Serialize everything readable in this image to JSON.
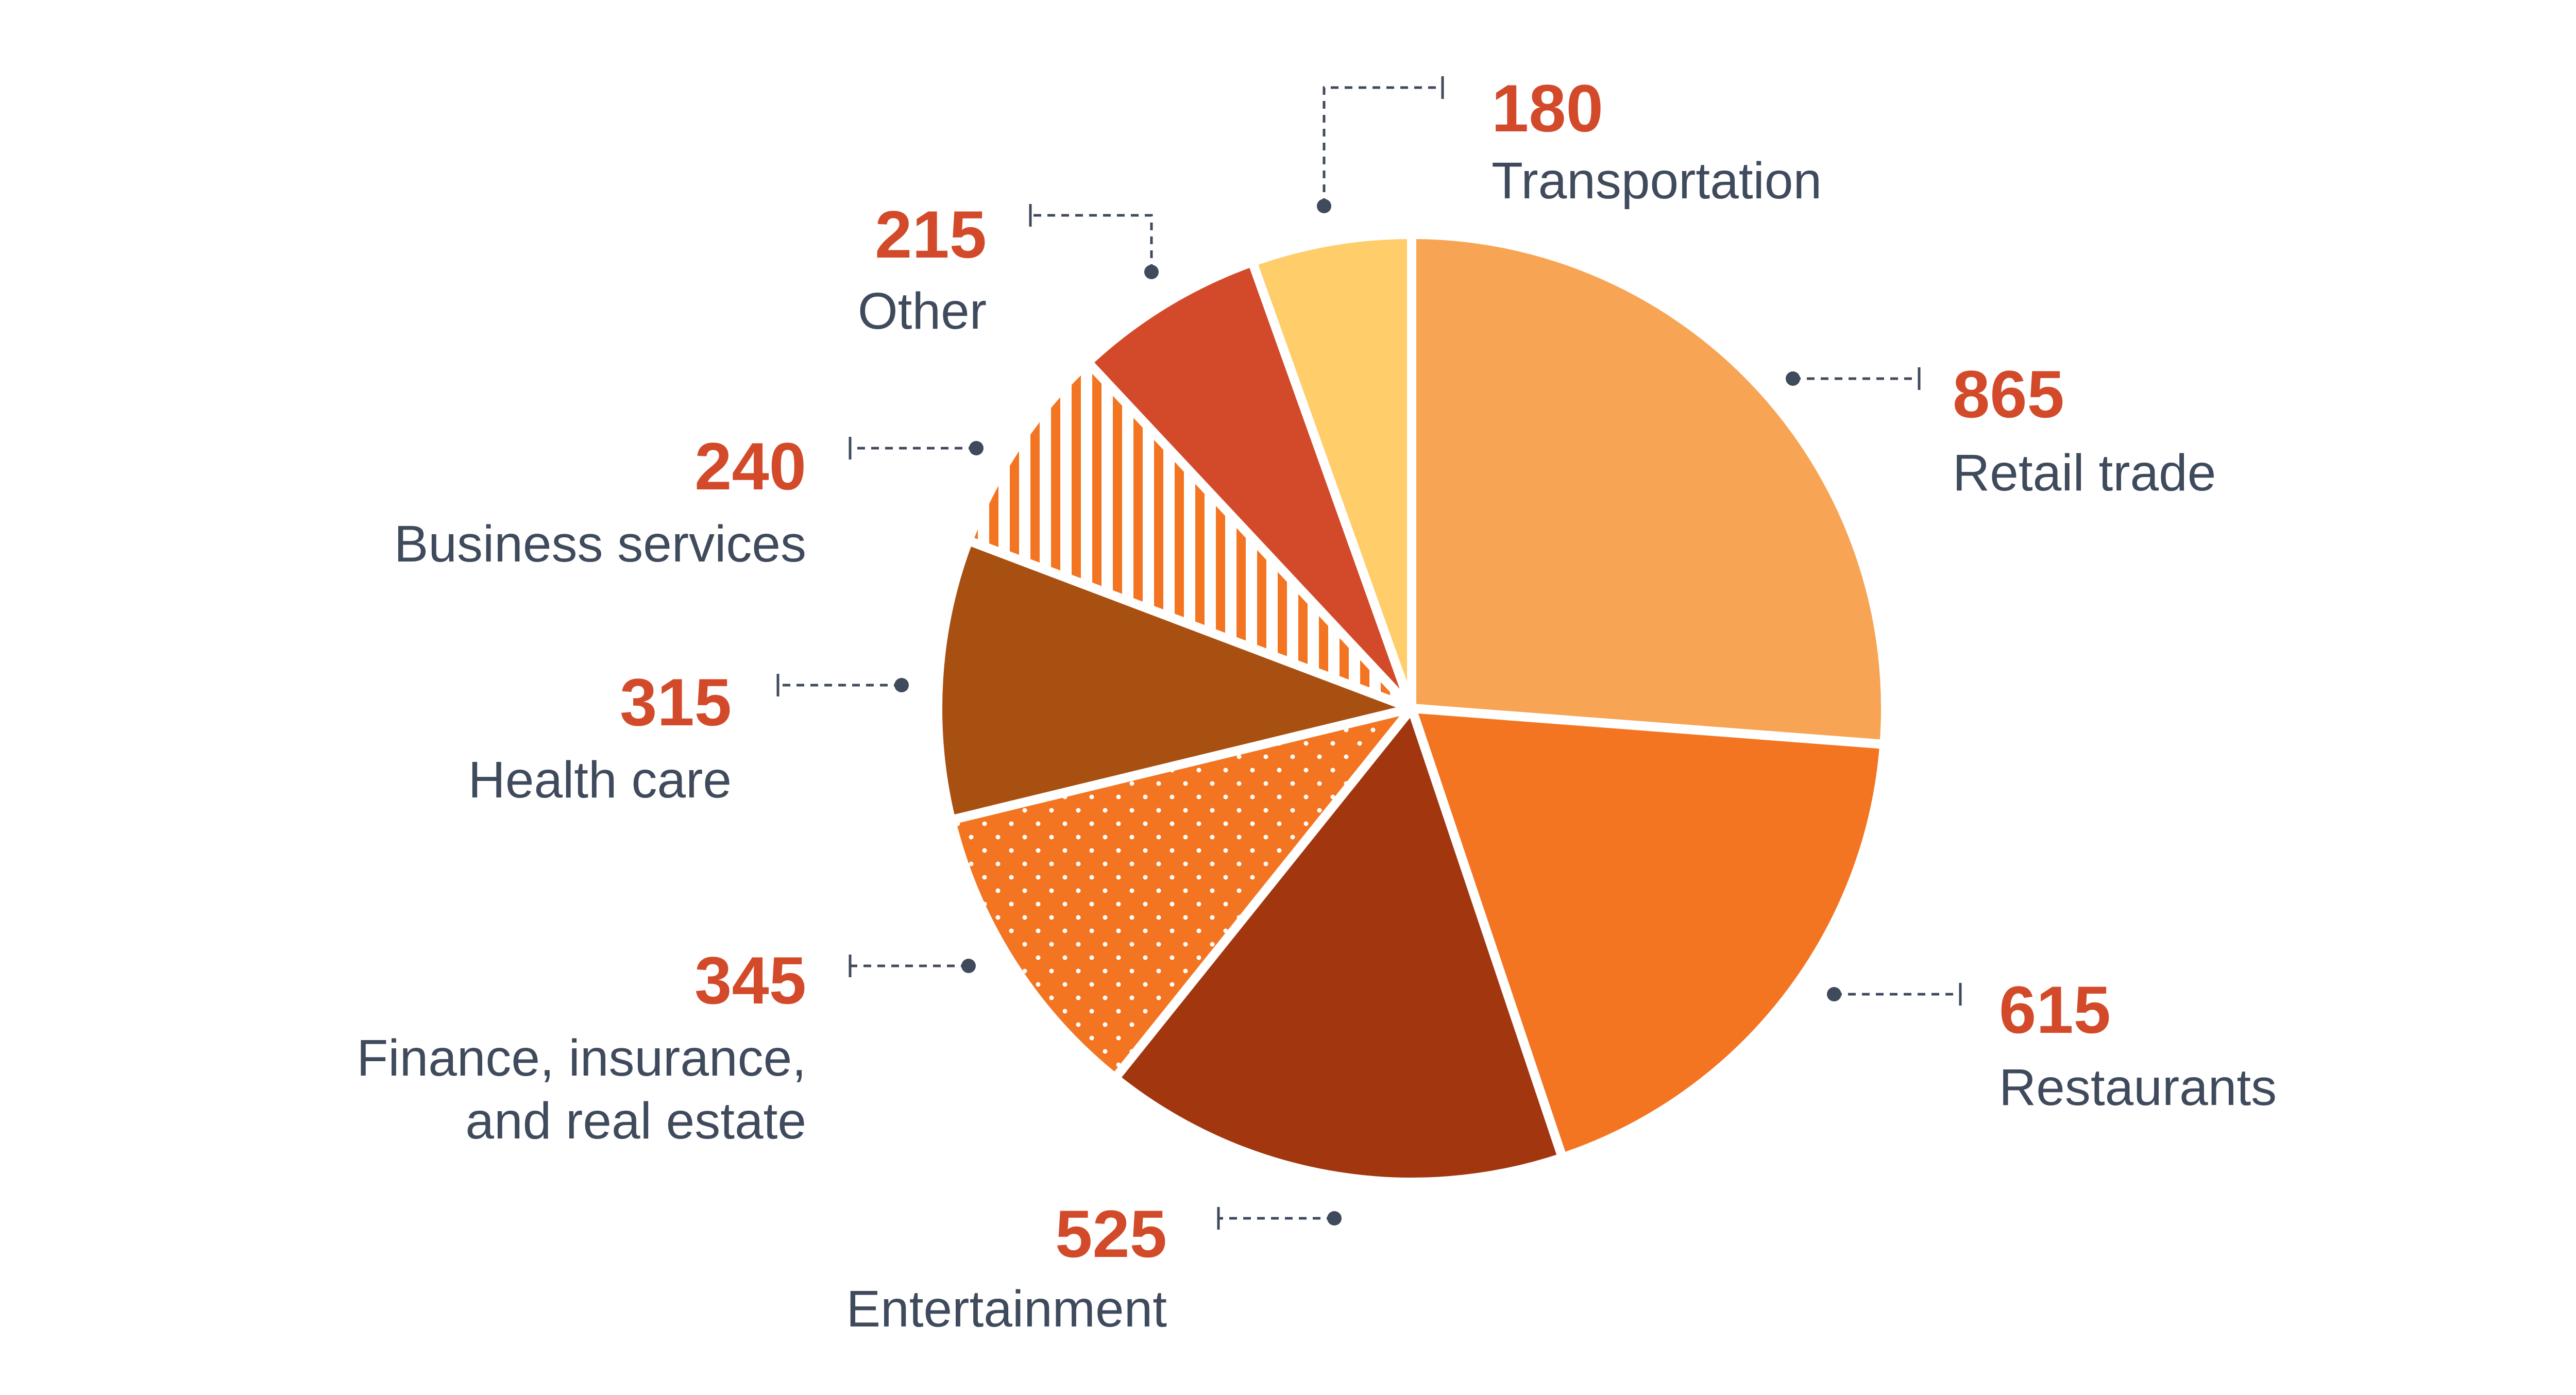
{
  "chart_data": {
    "type": "pie",
    "slices": [
      {
        "category": "Retail trade",
        "value": 865,
        "value_label": "865",
        "label_lines": [
          "Retail trade"
        ],
        "color": "#f7a455",
        "pattern": "solid"
      },
      {
        "category": "Restaurants",
        "value": 615,
        "value_label": "615",
        "label_lines": [
          "Restaurants"
        ],
        "color": "#f37522",
        "pattern": "solid"
      },
      {
        "category": "Entertainment",
        "value": 525,
        "value_label": "525",
        "label_lines": [
          "Entertainment"
        ],
        "color": "#a1360f",
        "pattern": "solid"
      },
      {
        "category": "Finance, insurance, and real estate",
        "value": 345,
        "value_label": "345",
        "label_lines": [
          "Finance, insurance,",
          "and real estate"
        ],
        "color": "#f37522",
        "pattern": "dots"
      },
      {
        "category": "Health care",
        "value": 315,
        "value_label": "315",
        "label_lines": [
          "Health care"
        ],
        "color": "#a84f12",
        "pattern": "solid"
      },
      {
        "category": "Business services",
        "value": 240,
        "value_label": "240",
        "label_lines": [
          "Business services"
        ],
        "color": "#f37522",
        "pattern": "vertical-stripes"
      },
      {
        "category": "Other",
        "value": 215,
        "value_label": "215",
        "label_lines": [
          "Other"
        ],
        "color": "#d24a2a",
        "pattern": "solid"
      },
      {
        "category": "Transportation",
        "value": 180,
        "value_label": "180",
        "label_lines": [
          "Transportation"
        ],
        "color": "#ffcd6a",
        "pattern": "solid"
      }
    ],
    "start_angle_deg": 0,
    "direction": "clockwise",
    "legend": "none",
    "value_color": "#d24a2a",
    "label_color": "#3f4a5c",
    "leader_color": "#3f4a5c"
  }
}
